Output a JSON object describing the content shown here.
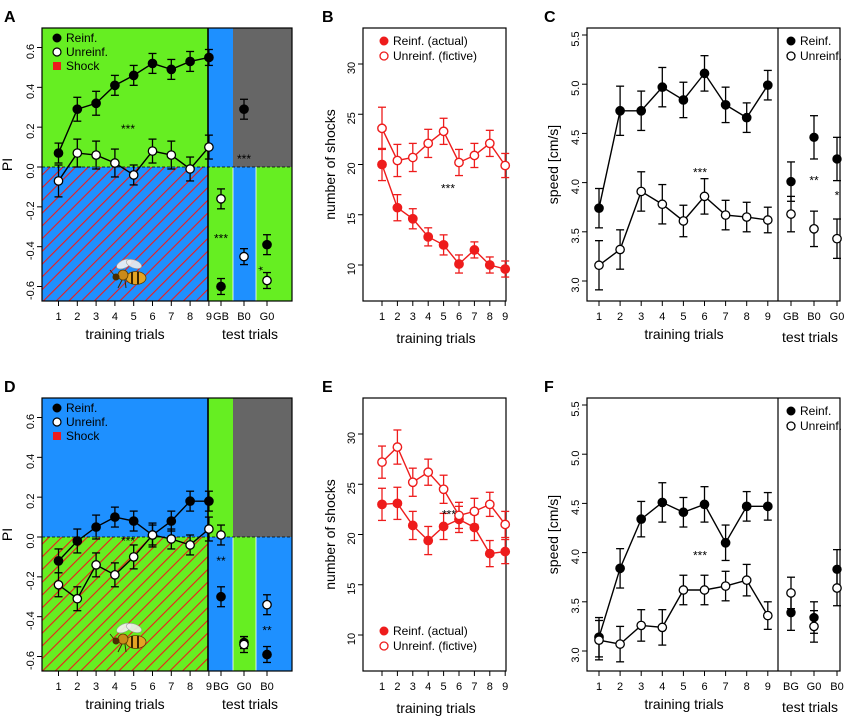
{
  "colors": {
    "green": "#66ee22",
    "blue": "#1e90ff",
    "gray": "#666666",
    "shock": "#ee1c1c",
    "red": "#ee1c1c",
    "black": "#000000"
  },
  "chart_data": [
    {
      "panel": "A",
      "type": "line",
      "background": "green_top_blue_bottom_shock",
      "ylabel": "PI",
      "xlabel_train": "training trials",
      "xlabel_test": "test trials",
      "ylim": [
        -0.7,
        0.7
      ],
      "yticks": [
        -0.6,
        -0.4,
        -0.2,
        0.0,
        0.2,
        0.4,
        0.6
      ],
      "ytick_labels": [
        "-0.6",
        "-0.4",
        "-0.2",
        "0.0",
        "0.2",
        "0.4",
        "0.6"
      ],
      "x": [
        "1",
        "2",
        "3",
        "4",
        "5",
        "6",
        "7",
        "8",
        "9"
      ],
      "test_labels": [
        "GB",
        "B0",
        "G0"
      ],
      "legend": [
        "Reinf.",
        "Unreinf.",
        "Shock"
      ],
      "series": [
        {
          "name": "Reinf.",
          "fill": "black",
          "values": [
            0.07,
            0.29,
            0.32,
            0.41,
            0.46,
            0.52,
            0.49,
            0.53,
            0.55
          ],
          "err": [
            0.05,
            0.06,
            0.06,
            0.05,
            0.05,
            0.05,
            0.05,
            0.05,
            0.04
          ]
        },
        {
          "name": "Unreinf.",
          "fill": "white",
          "values": [
            -0.07,
            0.07,
            0.06,
            0.02,
            -0.04,
            0.08,
            0.06,
            -0.01,
            0.1
          ],
          "err": [
            0.08,
            0.07,
            0.07,
            0.07,
            0.05,
            0.06,
            0.07,
            0.06,
            0.06
          ]
        }
      ],
      "train_annotation": "***",
      "tests": [
        {
          "label": "GB",
          "reinf": -0.6,
          "reinf_err": 0.04,
          "unreinf": -0.16,
          "unreinf_err": 0.05,
          "sig": "***"
        },
        {
          "label": "B0",
          "reinf": 0.29,
          "reinf_err": 0.05,
          "unreinf": -0.45,
          "unreinf_err": 0.04,
          "sig": "***"
        },
        {
          "label": "G0",
          "reinf": -0.39,
          "reinf_err": 0.05,
          "unreinf": -0.57,
          "unreinf_err": 0.04,
          "sig": "*"
        }
      ],
      "test_layout": {
        "bands": [
          "blue",
          "green",
          "blue",
          "green"
        ],
        "gray_top": [
          false,
          true,
          true
        ]
      }
    },
    {
      "panel": "B",
      "type": "line",
      "ylabel": "number of shocks",
      "xlabel": "training trials",
      "ylim": [
        7,
        31
      ],
      "yticks": [
        10,
        15,
        20,
        25,
        30
      ],
      "ytick_labels": [
        "10",
        "15",
        "20",
        "25",
        "30"
      ],
      "x": [
        "1",
        "2",
        "3",
        "4",
        "5",
        "6",
        "7",
        "8",
        "9"
      ],
      "legend": [
        "Reinf. (actual)",
        "Unreinf. (fictive)"
      ],
      "legend_pos": "top-right",
      "annotation": "***",
      "series": [
        {
          "name": "Reinf. (actual)",
          "fill": "red",
          "values": [
            20.0,
            15.7,
            14.6,
            12.8,
            12.0,
            10.1,
            11.5,
            10.0,
            9.6
          ],
          "err": [
            1.6,
            1.3,
            1.0,
            0.9,
            1.0,
            0.9,
            0.8,
            0.8,
            0.8
          ]
        },
        {
          "name": "Unreinf. (fictive)",
          "fill": "white",
          "values": [
            23.6,
            20.4,
            20.7,
            22.1,
            23.3,
            20.2,
            20.9,
            22.1,
            19.9
          ],
          "err": [
            2.1,
            1.6,
            1.4,
            1.4,
            1.3,
            1.3,
            1.2,
            1.3,
            1.2
          ]
        }
      ]
    },
    {
      "panel": "C",
      "type": "line",
      "ylabel": "speed [cm/s]",
      "xlabel_train": "training trials",
      "xlabel_test": "test trials",
      "ylim": [
        2.9,
        5.5
      ],
      "yticks": [
        3.0,
        3.5,
        4.0,
        4.5,
        5.0,
        5.5
      ],
      "ytick_labels": [
        "3.0",
        "3.5",
        "4.0",
        "4.5",
        "5.0",
        "5.5"
      ],
      "x": [
        "1",
        "2",
        "3",
        "4",
        "5",
        "6",
        "7",
        "8",
        "9"
      ],
      "test_labels": [
        "GB",
        "B0",
        "G0"
      ],
      "legend": [
        "Reinf.",
        "Unreinf."
      ],
      "annotation": "***",
      "series": [
        {
          "name": "Reinf.",
          "fill": "black",
          "values": [
            3.74,
            4.73,
            4.73,
            4.97,
            4.84,
            5.11,
            4.79,
            4.66,
            4.99
          ],
          "err": [
            0.2,
            0.25,
            0.2,
            0.2,
            0.18,
            0.18,
            0.18,
            0.15,
            0.15
          ]
        },
        {
          "name": "Unreinf.",
          "fill": "white",
          "values": [
            3.16,
            3.32,
            3.91,
            3.78,
            3.61,
            3.86,
            3.67,
            3.65,
            3.62
          ],
          "err": [
            0.25,
            0.2,
            0.2,
            0.2,
            0.16,
            0.18,
            0.15,
            0.15,
            0.13
          ]
        }
      ],
      "tests": [
        {
          "label": "GB",
          "reinf": 4.01,
          "reinf_err": 0.2,
          "unreinf": 3.68,
          "unreinf_err": 0.18,
          "sig": ""
        },
        {
          "label": "B0",
          "reinf": 4.46,
          "reinf_err": 0.22,
          "unreinf": 3.53,
          "unreinf_err": 0.18,
          "sig": "**"
        },
        {
          "label": "G0",
          "reinf": 4.24,
          "reinf_err": 0.22,
          "unreinf": 3.43,
          "unreinf_err": 0.2,
          "sig": "*"
        }
      ]
    },
    {
      "panel": "D",
      "type": "line",
      "background": "blue_top_green_bottom_shock",
      "ylabel": "PI",
      "xlabel_train": "training trials",
      "xlabel_test": "test trials",
      "ylim": [
        -0.7,
        0.7
      ],
      "yticks": [
        -0.6,
        -0.4,
        -0.2,
        0.0,
        0.2,
        0.4,
        0.6
      ],
      "ytick_labels": [
        "-0.6",
        "-0.4",
        "-0.2",
        "0.0",
        "0.2",
        "0.4",
        "0.6"
      ],
      "x": [
        "1",
        "2",
        "3",
        "4",
        "5",
        "6",
        "7",
        "8",
        "9"
      ],
      "test_labels": [
        "BG",
        "G0",
        "B0"
      ],
      "legend": [
        "Reinf.",
        "Unreinf.",
        "Shock"
      ],
      "series": [
        {
          "name": "Reinf.",
          "fill": "black",
          "values": [
            -0.12,
            -0.02,
            0.05,
            0.1,
            0.08,
            0.01,
            0.08,
            0.18,
            0.18
          ],
          "err": [
            0.06,
            0.06,
            0.06,
            0.05,
            0.05,
            0.05,
            0.05,
            0.05,
            0.05
          ]
        },
        {
          "name": "Unreinf.",
          "fill": "white",
          "values": [
            -0.24,
            -0.31,
            -0.14,
            -0.19,
            -0.1,
            0.01,
            -0.01,
            -0.04,
            0.04
          ],
          "err": [
            0.06,
            0.06,
            0.06,
            0.06,
            0.06,
            0.06,
            0.05,
            0.05,
            0.06
          ]
        }
      ],
      "train_annotation": "***",
      "tests": [
        {
          "label": "BG",
          "reinf": -0.3,
          "reinf_err": 0.05,
          "unreinf": 0.01,
          "unreinf_err": 0.05,
          "sig": "**"
        },
        {
          "label": "G0",
          "reinf": -0.53,
          "reinf_err": 0.03,
          "unreinf": -0.54,
          "unreinf_err": 0.04,
          "sig": ""
        },
        {
          "label": "B0",
          "reinf": -0.59,
          "reinf_err": 0.04,
          "unreinf": -0.34,
          "unreinf_err": 0.05,
          "sig": "**"
        }
      ],
      "test_layout": {
        "bands": [
          "green",
          "blue",
          "green",
          "blue"
        ],
        "gray_top": [
          false,
          true,
          true
        ]
      }
    },
    {
      "panel": "E",
      "type": "line",
      "ylabel": "number of shocks",
      "xlabel": "training trials",
      "ylim": [
        7,
        31
      ],
      "yticks": [
        10,
        15,
        20,
        25,
        30
      ],
      "ytick_labels": [
        "10",
        "15",
        "20",
        "25",
        "30"
      ],
      "x": [
        "1",
        "2",
        "3",
        "4",
        "5",
        "6",
        "7",
        "8",
        "9"
      ],
      "legend": [
        "Reinf. (actual)",
        "Unreinf. (fictive)"
      ],
      "legend_pos": "bottom-right",
      "annotation": "***",
      "series": [
        {
          "name": "Reinf. (actual)",
          "fill": "red",
          "values": [
            23.0,
            23.1,
            20.9,
            19.4,
            20.8,
            21.5,
            20.7,
            18.1,
            18.3
          ],
          "err": [
            1.6,
            1.6,
            1.4,
            1.4,
            1.3,
            1.3,
            1.3,
            1.3,
            1.2
          ]
        },
        {
          "name": "Unreinf. (fictive)",
          "fill": "white",
          "values": [
            27.2,
            28.7,
            25.2,
            26.2,
            24.5,
            21.9,
            22.3,
            23.0,
            21.0
          ],
          "err": [
            1.6,
            1.7,
            1.4,
            1.3,
            1.4,
            1.3,
            1.3,
            1.2,
            1.3
          ]
        }
      ]
    },
    {
      "panel": "F",
      "type": "line",
      "ylabel": "speed [cm/s]",
      "xlabel_train": "training trials",
      "xlabel_test": "test trials",
      "ylim": [
        2.9,
        5.5
      ],
      "yticks": [
        3.0,
        3.5,
        4.0,
        4.5,
        5.0,
        5.5
      ],
      "ytick_labels": [
        "3.0",
        "3.5",
        "4.0",
        "4.5",
        "5.0",
        "5.5"
      ],
      "x": [
        "1",
        "2",
        "3",
        "4",
        "5",
        "6",
        "7",
        "8",
        "9"
      ],
      "test_labels": [
        "BG",
        "G0",
        "B0"
      ],
      "legend": [
        "Reinf.",
        "Unreinf."
      ],
      "annotation": "***",
      "series": [
        {
          "name": "Reinf.",
          "fill": "black",
          "values": [
            3.14,
            3.84,
            4.34,
            4.51,
            4.41,
            4.49,
            4.1,
            4.47,
            4.47
          ],
          "err": [
            0.2,
            0.2,
            0.18,
            0.2,
            0.15,
            0.18,
            0.18,
            0.15,
            0.14
          ]
        },
        {
          "name": "Unreinf.",
          "fill": "white",
          "values": [
            3.11,
            3.07,
            3.26,
            3.24,
            3.62,
            3.62,
            3.66,
            3.72,
            3.36
          ],
          "err": [
            0.2,
            0.18,
            0.16,
            0.18,
            0.15,
            0.15,
            0.15,
            0.16,
            0.14
          ]
        }
      ],
      "tests": [
        {
          "label": "BG",
          "reinf": 3.39,
          "reinf_err": 0.18,
          "unreinf": 3.59,
          "unreinf_err": 0.16,
          "sig": ""
        },
        {
          "label": "G0",
          "reinf": 3.34,
          "reinf_err": 0.16,
          "unreinf": 3.25,
          "unreinf_err": 0.16,
          "sig": ""
        },
        {
          "label": "B0",
          "reinf": 3.83,
          "reinf_err": 0.2,
          "unreinf": 3.64,
          "unreinf_err": 0.18,
          "sig": ""
        }
      ]
    }
  ]
}
